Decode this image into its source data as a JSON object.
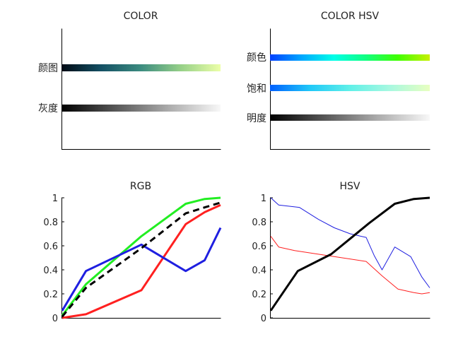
{
  "colors": {
    "red": "#ff2020",
    "green": "#22ee22",
    "blue": "#1f1fe0",
    "black": "#000000"
  },
  "chart_data": [
    {
      "type": "colormap",
      "title": "COLOR",
      "bars": [
        {
          "label": "颜图",
          "stops": [
            "#000a14",
            "#145064",
            "#3c8c80",
            "#96d088",
            "#ecffa8"
          ]
        },
        {
          "label": "灰度",
          "stops": [
            "#000000",
            "#555555",
            "#aaaaaa",
            "#f8f8f8"
          ]
        }
      ]
    },
    {
      "type": "colormap",
      "title": "COLOR HSV",
      "bars": [
        {
          "label": "颜色",
          "stops": [
            "#0040ff",
            "#00a8ff",
            "#00ffe8",
            "#10ff80",
            "#40ff00",
            "#c8f000"
          ]
        },
        {
          "label": "饱和",
          "stops": [
            "#0060ff",
            "#20c8f8",
            "#60f0e8",
            "#a8f8e0",
            "#e8ffc0"
          ]
        },
        {
          "label": "明度",
          "stops": [
            "#000000",
            "#555555",
            "#aaaaaa",
            "#f8f8f8"
          ]
        }
      ]
    },
    {
      "type": "line",
      "title": "RGB",
      "ylim": [
        0,
        1
      ],
      "yticks": [
        "0",
        "0.2",
        "0.4",
        "0.6",
        "0.8",
        "1"
      ],
      "xlim": [
        0,
        1
      ],
      "series": [
        {
          "color_key": "red",
          "dash": false,
          "width": 3,
          "x": [
            0,
            0.15,
            0.5,
            0.78,
            0.9,
            1
          ],
          "y": [
            0,
            0.03,
            0.23,
            0.78,
            0.88,
            0.94
          ]
        },
        {
          "color_key": "green",
          "dash": false,
          "width": 3,
          "x": [
            0,
            0.15,
            0.5,
            0.78,
            0.9,
            1
          ],
          "y": [
            0.02,
            0.28,
            0.68,
            0.95,
            0.99,
            1.0
          ]
        },
        {
          "color_key": "blue",
          "dash": false,
          "width": 3,
          "x": [
            0,
            0.15,
            0.5,
            0.78,
            0.9,
            1
          ],
          "y": [
            0.06,
            0.39,
            0.61,
            0.39,
            0.48,
            0.75
          ]
        },
        {
          "color_key": "black",
          "dash": true,
          "width": 3,
          "x": [
            0,
            0.15,
            0.5,
            0.78,
            0.9,
            1
          ],
          "y": [
            0.01,
            0.25,
            0.58,
            0.87,
            0.92,
            0.96
          ]
        }
      ]
    },
    {
      "type": "line",
      "title": "HSV",
      "ylim": [
        0,
        1
      ],
      "yticks": [
        "0",
        "0.2",
        "0.4",
        "0.6",
        "0.8",
        "1"
      ],
      "xlim": [
        0,
        1
      ],
      "series": [
        {
          "color_key": "blue",
          "dash": false,
          "width": 1,
          "x": [
            0,
            0.05,
            0.18,
            0.3,
            0.4,
            0.5,
            0.6,
            0.65,
            0.7,
            0.78,
            0.88,
            0.95,
            1
          ],
          "y": [
            1.0,
            0.94,
            0.92,
            0.82,
            0.75,
            0.7,
            0.67,
            0.52,
            0.4,
            0.59,
            0.51,
            0.34,
            0.25
          ]
        },
        {
          "color_key": "red",
          "dash": false,
          "width": 1,
          "x": [
            0,
            0.05,
            0.15,
            0.3,
            0.45,
            0.6,
            0.7,
            0.8,
            0.9,
            0.95,
            1
          ],
          "y": [
            0.68,
            0.59,
            0.56,
            0.53,
            0.5,
            0.47,
            0.35,
            0.24,
            0.21,
            0.2,
            0.21
          ]
        },
        {
          "color_key": "black",
          "dash": false,
          "width": 3,
          "x": [
            0,
            0.17,
            0.38,
            0.5,
            0.62,
            0.78,
            0.9,
            1
          ],
          "y": [
            0.06,
            0.39,
            0.53,
            0.66,
            0.79,
            0.95,
            0.99,
            1.0
          ]
        }
      ]
    }
  ]
}
